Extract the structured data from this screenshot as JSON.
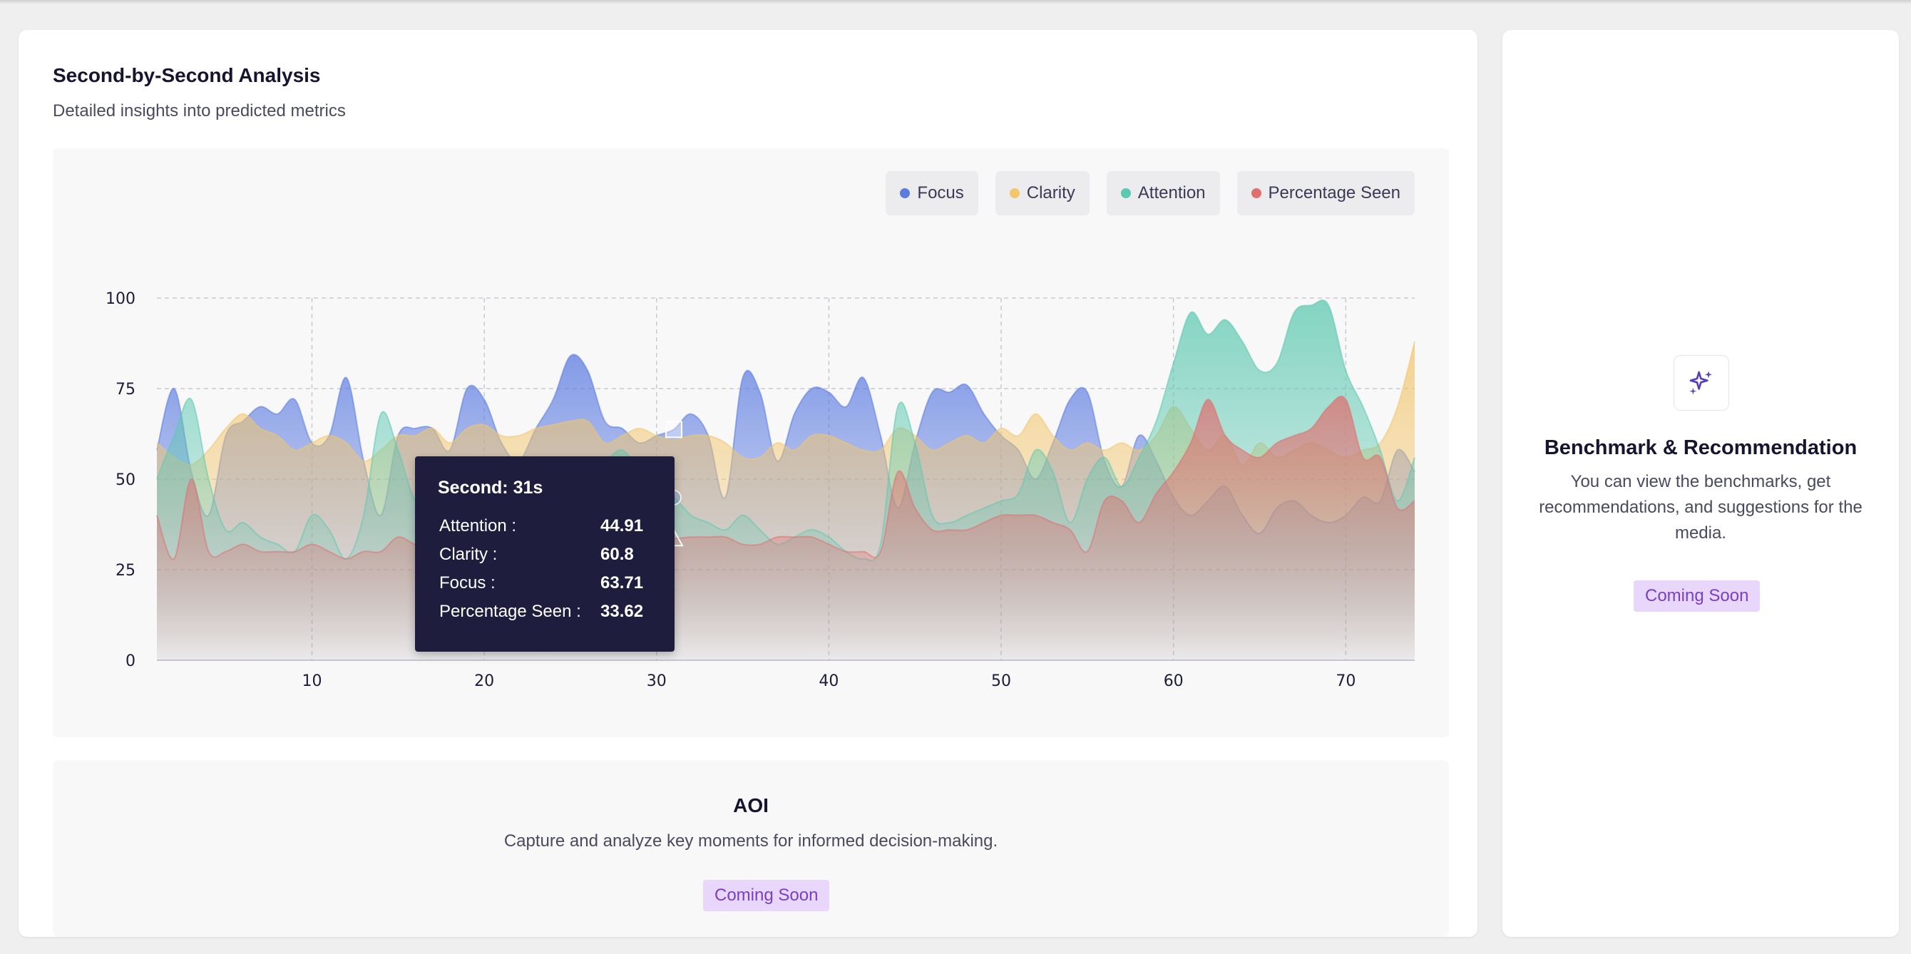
{
  "analysis": {
    "title": "Second-by-Second Analysis",
    "subtitle": "Detailed insights into predicted metrics"
  },
  "legend": [
    {
      "label": "Focus",
      "color": "#5b7be0"
    },
    {
      "label": "Clarity",
      "color": "#f2c66d"
    },
    {
      "label": "Attention",
      "color": "#5cc8b0"
    },
    {
      "label": "Percentage Seen",
      "color": "#e07070"
    }
  ],
  "tooltip": {
    "title": "Second: 31s",
    "rows": [
      {
        "label": "Attention :",
        "value": "44.91"
      },
      {
        "label": "Clarity :",
        "value": "60.8"
      },
      {
        "label": "Focus :",
        "value": "63.71"
      },
      {
        "label": "Percentage Seen :",
        "value": "33.62"
      }
    ]
  },
  "aoi": {
    "title": "AOI",
    "description": "Capture and analyze key moments for informed decision-making.",
    "badge": "Coming Soon"
  },
  "benchmark": {
    "icon": "sparkles-icon",
    "title": "Benchmark & Recommendation",
    "description": "You can view the benchmarks, get recommendations, and suggestions for the media.",
    "badge": "Coming Soon"
  },
  "chart_data": {
    "type": "area",
    "x": [
      1,
      2,
      3,
      4,
      5,
      6,
      7,
      8,
      9,
      10,
      11,
      12,
      13,
      14,
      15,
      16,
      17,
      18,
      19,
      20,
      21,
      22,
      23,
      24,
      25,
      26,
      27,
      28,
      29,
      30,
      31,
      32,
      33,
      34,
      35,
      36,
      37,
      38,
      39,
      40,
      41,
      42,
      43,
      44,
      45,
      46,
      47,
      48,
      49,
      50,
      51,
      52,
      53,
      54,
      55,
      56,
      57,
      58,
      59,
      60,
      61,
      62,
      63,
      64,
      65,
      66,
      67,
      68,
      69,
      70,
      71,
      72,
      73,
      74
    ],
    "xticks": [
      10,
      20,
      30,
      40,
      50,
      60,
      70
    ],
    "yticks": [
      0,
      25,
      50,
      75,
      100
    ],
    "ylim": [
      0,
      100
    ],
    "xlim": [
      1,
      74
    ],
    "grid": true,
    "legend_position": "top-right",
    "series": [
      {
        "name": "Focus",
        "color": "#5b7be0",
        "values": [
          58,
          75,
          52,
          40,
          62,
          66,
          70,
          68,
          72,
          60,
          62,
          78,
          55,
          40,
          62,
          64,
          64,
          58,
          75,
          72,
          60,
          55,
          64,
          72,
          84,
          80,
          66,
          64,
          60,
          62,
          63.71,
          68,
          62,
          45,
          78,
          74,
          55,
          68,
          75,
          74,
          70,
          78,
          62,
          42,
          60,
          74,
          74,
          76,
          68,
          62,
          58,
          50,
          60,
          72,
          74,
          55,
          48,
          62,
          55,
          45,
          40,
          44,
          48,
          40,
          35,
          42,
          44,
          40,
          38,
          40,
          45,
          44,
          58,
          52
        ]
      },
      {
        "name": "Clarity",
        "color": "#f2c66d",
        "values": [
          60,
          56,
          54,
          58,
          64,
          68,
          64,
          62,
          58,
          60,
          62,
          60,
          55,
          58,
          62,
          62,
          64,
          60,
          64,
          65,
          62,
          62,
          64,
          65,
          66,
          66,
          60,
          62,
          64,
          62,
          60.8,
          62,
          62,
          60,
          56,
          56,
          60,
          58,
          62,
          62,
          60,
          58,
          58,
          64,
          62,
          58,
          60,
          62,
          60,
          64,
          62,
          68,
          62,
          58,
          60,
          58,
          60,
          58,
          62,
          70,
          64,
          58,
          62,
          54,
          60,
          56,
          58,
          60,
          58,
          56,
          58,
          60,
          70,
          88
        ]
      },
      {
        "name": "Attention",
        "color": "#5cc8b0",
        "values": [
          50,
          62,
          72,
          50,
          36,
          38,
          34,
          32,
          30,
          40,
          36,
          28,
          40,
          68,
          58,
          44,
          44,
          44,
          40,
          38,
          42,
          40,
          44,
          40,
          42,
          44,
          54,
          58,
          52,
          46,
          44.91,
          40,
          38,
          36,
          40,
          36,
          32,
          34,
          36,
          34,
          30,
          28,
          32,
          70,
          60,
          40,
          38,
          40,
          42,
          44,
          46,
          58,
          52,
          38,
          50,
          56,
          48,
          56,
          66,
          82,
          96,
          90,
          94,
          88,
          80,
          82,
          96,
          98,
          98,
          80,
          70,
          58,
          44,
          56
        ]
      },
      {
        "name": "Percentage Seen",
        "color": "#e07070",
        "values": [
          40,
          28,
          50,
          30,
          30,
          32,
          30,
          30,
          30,
          32,
          30,
          28,
          30,
          30,
          34,
          32,
          32,
          30,
          30,
          34,
          30,
          32,
          30,
          32,
          30,
          32,
          32,
          34,
          32,
          34,
          33.62,
          34,
          34,
          34,
          32,
          32,
          34,
          34,
          34,
          32,
          30,
          30,
          30,
          52,
          42,
          36,
          36,
          36,
          38,
          40,
          40,
          40,
          38,
          36,
          30,
          44,
          44,
          38,
          46,
          52,
          60,
          72,
          62,
          58,
          56,
          60,
          62,
          64,
          70,
          72,
          56,
          56,
          42,
          44
        ]
      }
    ]
  }
}
